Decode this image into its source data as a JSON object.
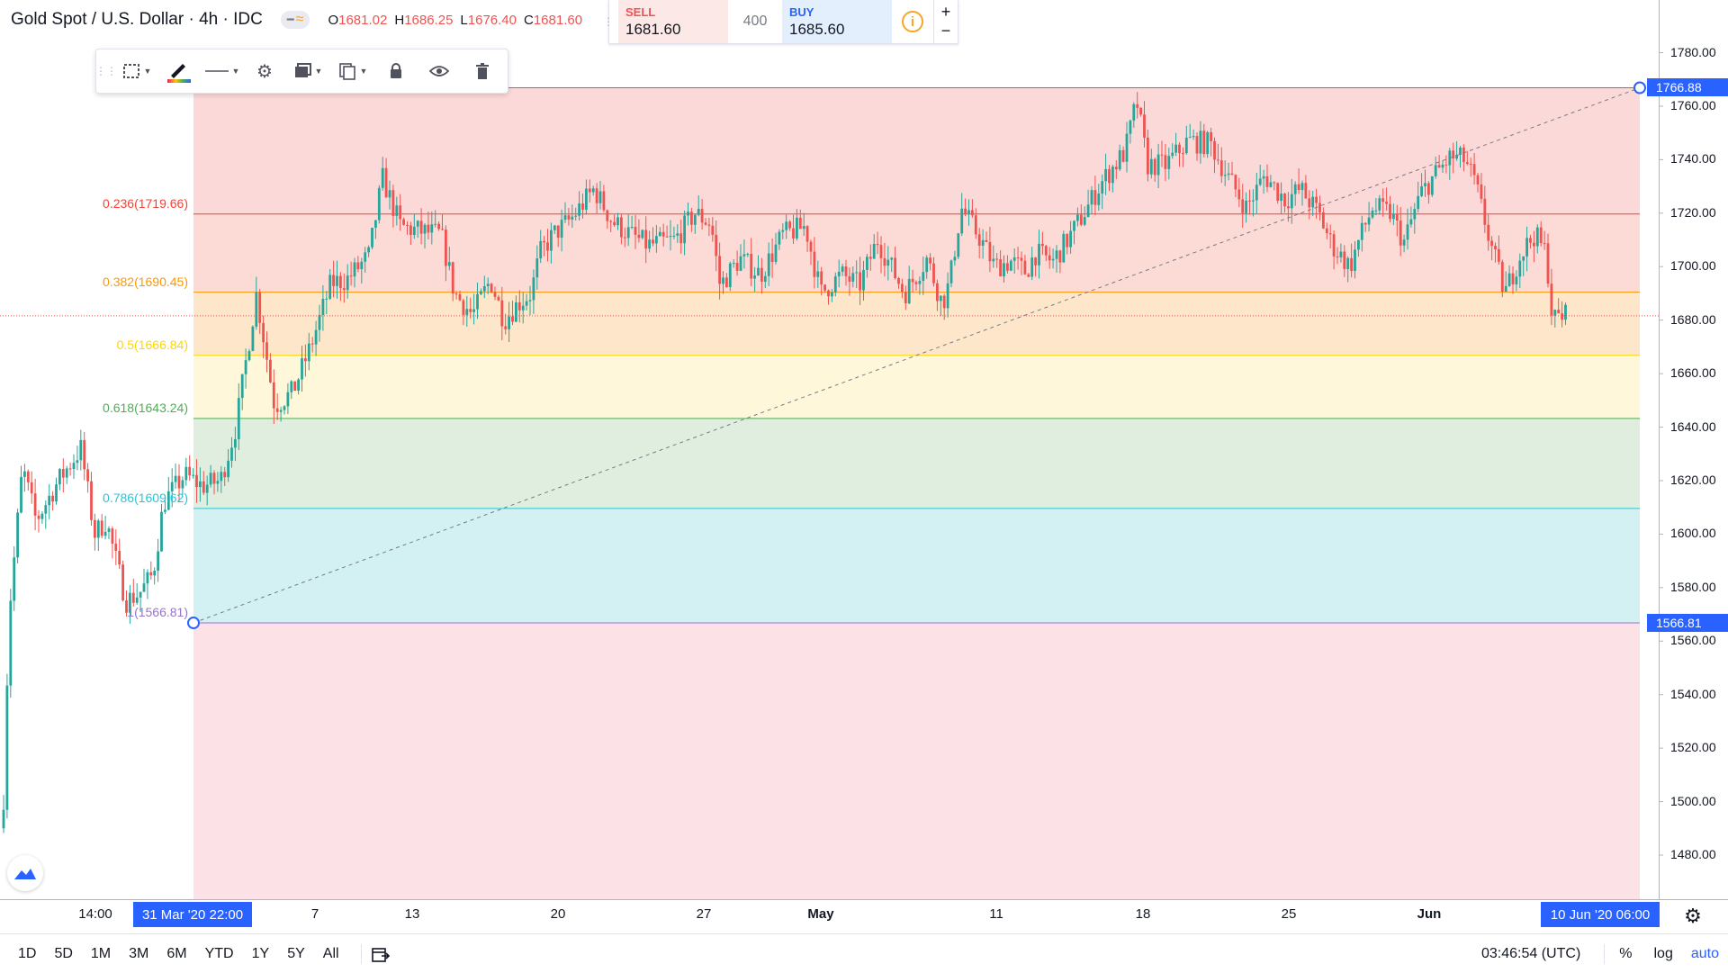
{
  "symbol": {
    "title": "Gold Spot / U.S. Dollar · 4h · IDC",
    "badge_icon": "waves-icon"
  },
  "ohlc": [
    {
      "k": "O",
      "v": "1681.02"
    },
    {
      "k": "H",
      "v": "1686.25"
    },
    {
      "k": "L",
      "v": "1676.40"
    },
    {
      "k": "C",
      "v": "1681.60"
    }
  ],
  "trade": {
    "sell_label": "SELL",
    "sell_price": "1681.60",
    "quantity": "400",
    "buy_label": "BUY",
    "buy_price": "1685.60",
    "plus": "+",
    "minus": "−",
    "info_icon": "i"
  },
  "toolbar_icons": [
    "select-region-icon",
    "pencil-color-icon",
    "line-style-icon",
    "gear-icon",
    "layers-icon",
    "clone-icon",
    "lock-icon",
    "eye-icon",
    "trash-icon"
  ],
  "price_axis": {
    "ticks": [
      "1780.00",
      "1760.00",
      "1740.00",
      "1720.00",
      "1700.00",
      "1680.00",
      "1660.00",
      "1640.00",
      "1620.00",
      "1600.00",
      "1580.00",
      "1560.00",
      "1540.00",
      "1520.00",
      "1500.00",
      "1480.00"
    ],
    "tick_values": [
      1780,
      1760,
      1740,
      1720,
      1700,
      1680,
      1660,
      1640,
      1620,
      1600,
      1580,
      1560,
      1540,
      1520,
      1500,
      1480
    ],
    "top_tag": "1766.88",
    "top_value": 1766.88,
    "bottom_tag": "1566.81",
    "bottom_value": 1566.81,
    "current_price": 1681.6
  },
  "time_axis": {
    "labels": [
      {
        "text": "14:00",
        "bold": false
      },
      {
        "text": "7",
        "bold": false
      },
      {
        "text": "13",
        "bold": false
      },
      {
        "text": "20",
        "bold": false
      },
      {
        "text": "27",
        "bold": false
      },
      {
        "text": "May",
        "bold": true
      },
      {
        "text": "11",
        "bold": false
      },
      {
        "text": "18",
        "bold": false
      },
      {
        "text": "25",
        "bold": false
      },
      {
        "text": "Jun",
        "bold": true
      }
    ],
    "start_tag": "31 Mar '20   22:00",
    "end_tag": "10 Jun '20   06:00"
  },
  "fib_levels": [
    {
      "label": "0.236(1719.66)",
      "value": 1719.66,
      "color": "#f44336",
      "fill": "#fcdad6"
    },
    {
      "label": "0.382(1690.45)",
      "value": 1690.45,
      "color": "#ff9800",
      "fill": "#fde6c9"
    },
    {
      "label": "0.5(1666.84)",
      "value": 1666.84,
      "color": "#ffd600",
      "fill": "#fef7d9"
    },
    {
      "label": "0.618(1643.24)",
      "value": 1643.24,
      "color": "#4caf50",
      "fill": "#e0eee0"
    },
    {
      "label": "0.786(1609.62)",
      "value": 1609.62,
      "color": "#26c6da",
      "fill": "#d3f0f2"
    },
    {
      "label": "1(1566.81)",
      "value": 1566.81,
      "color": "#9575cd",
      "fill": "#e6e0f2"
    }
  ],
  "fib_top_fill": "#fcd9d9",
  "fib_below_fill": "#fce1e7",
  "colors": {
    "up": "#26a69a",
    "down": "#ef5350",
    "accent": "#2962ff"
  },
  "bottom_bar": {
    "ranges": [
      "1D",
      "5D",
      "1M",
      "3M",
      "6M",
      "YTD",
      "1Y",
      "5Y",
      "All"
    ],
    "goto_icon": "goto-date-icon",
    "clock": "03:46:54 (UTC)",
    "percent": "%",
    "log": "log",
    "auto": "auto"
  },
  "settings_icon": "gear-icon",
  "logo_icon": "tradingview-logo-icon"
}
